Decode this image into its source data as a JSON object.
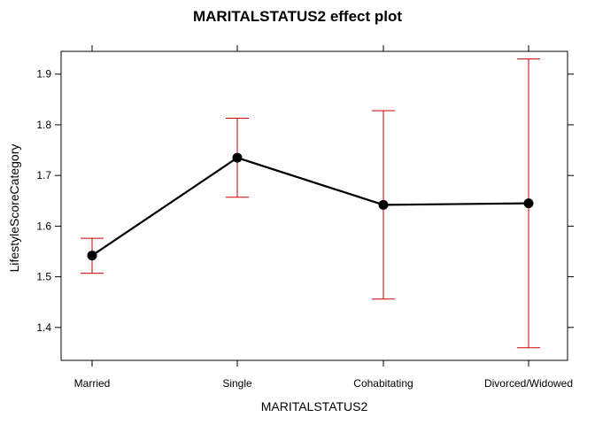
{
  "chart_data": {
    "type": "line",
    "title": "MARITALSTATUS2 effect plot",
    "xlabel": "MARITALSTATUS2",
    "ylabel": "LifestyleScoreCategory",
    "categories": [
      "Married",
      "Single",
      "Cohabitating",
      "Divorced/Widowed"
    ],
    "series": [
      {
        "values": [
          1.542,
          1.735,
          1.642,
          1.645
        ],
        "lower": [
          1.507,
          1.657,
          1.456,
          1.36
        ],
        "upper": [
          1.576,
          1.813,
          1.828,
          1.93
        ]
      }
    ],
    "yticks": [
      1.4,
      1.5,
      1.6,
      1.7,
      1.8,
      1.9
    ],
    "ytick_labels": [
      "1.4",
      "1.5",
      "1.6",
      "1.7",
      "1.8",
      "1.9"
    ],
    "ylim": [
      1.335,
      1.945
    ],
    "grid": false,
    "colors": {
      "line": "#000000",
      "point": "#000000",
      "error_bar": "#cc0000",
      "frame": "#000000"
    }
  }
}
